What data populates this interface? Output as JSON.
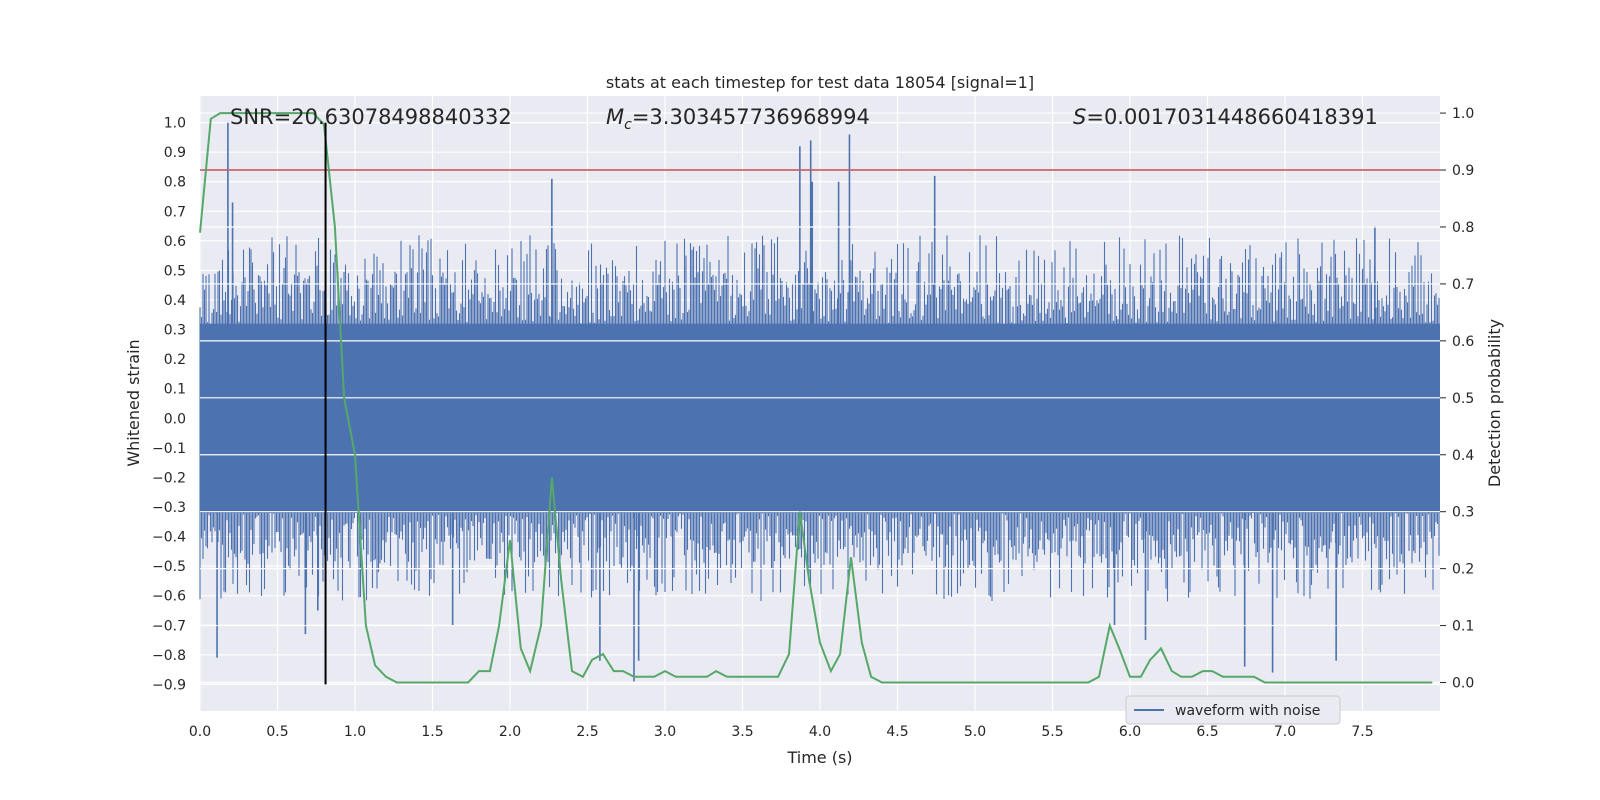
{
  "chart_data": {
    "type": "line",
    "title": "stats at each timestep for test data 18054 [signal=1]",
    "xlabel": "Time (s)",
    "ylabel_left": "Whitened strain",
    "ylabel_right": "Detection probability",
    "xlim": [
      0,
      8
    ],
    "ylim_left": [
      -0.99,
      1.09
    ],
    "ylim_right": [
      -0.05,
      1.03
    ],
    "x_ticks": [
      "0.0",
      "0.5",
      "1.0",
      "1.5",
      "2.0",
      "2.5",
      "3.0",
      "3.5",
      "4.0",
      "4.5",
      "5.0",
      "5.5",
      "6.0",
      "6.5",
      "7.0",
      "7.5"
    ],
    "x_tick_values": [
      0,
      0.5,
      1,
      1.5,
      2,
      2.5,
      3,
      3.5,
      4,
      4.5,
      5,
      5.5,
      6,
      6.5,
      7,
      7.5
    ],
    "y_left_ticks": [
      "1.0",
      "0.9",
      "0.8",
      "0.7",
      "0.6",
      "0.5",
      "0.4",
      "0.3",
      "0.2",
      "0.1",
      "0.0",
      "−0.1",
      "−0.2",
      "−0.3",
      "−0.4",
      "−0.5",
      "−0.6",
      "−0.7",
      "−0.8",
      "−0.9"
    ],
    "y_left_tick_values": [
      1.0,
      0.9,
      0.8,
      0.7,
      0.6,
      0.5,
      0.4,
      0.3,
      0.2,
      0.1,
      0.0,
      -0.1,
      -0.2,
      -0.3,
      -0.4,
      -0.5,
      -0.6,
      -0.7,
      -0.8,
      -0.9
    ],
    "y_right_ticks": [
      "1.0",
      "0.9",
      "0.8",
      "0.7",
      "0.6",
      "0.5",
      "0.4",
      "0.3",
      "0.2",
      "0.1",
      "0.0"
    ],
    "y_right_tick_values": [
      1.0,
      0.9,
      0.8,
      0.7,
      0.6,
      0.5,
      0.4,
      0.3,
      0.2,
      0.1,
      0.0
    ],
    "annotations": {
      "snr": "SNR=20.63078498840332",
      "mc_symbol": "M",
      "mc_sub": "c",
      "mc_value": "=3.303457736968994",
      "s_symbol": "S",
      "s_value": "=0.0017031448660418391"
    },
    "threshold_right": 0.9,
    "merger_time": 0.81,
    "legend": {
      "label": "waveform with noise",
      "location": "lower-right"
    },
    "waveform": {
      "name": "waveform with noise",
      "color": "#4c72b0",
      "core_band": [
        -0.32,
        0.32
      ],
      "noise_spike_max": 0.62,
      "spikes": [
        {
          "t": 0.18,
          "v": 1.0
        },
        {
          "t": 0.21,
          "v": 0.73
        },
        {
          "t": 0.11,
          "v": -0.81
        },
        {
          "t": 0.68,
          "v": -0.73
        },
        {
          "t": 0.76,
          "v": -0.65
        },
        {
          "t": 2.27,
          "v": 0.81
        },
        {
          "t": 2.8,
          "v": -0.89
        },
        {
          "t": 2.58,
          "v": -0.82
        },
        {
          "t": 3.87,
          "v": 0.92
        },
        {
          "t": 3.94,
          "v": 0.94
        },
        {
          "t": 3.95,
          "v": 0.8
        },
        {
          "t": 4.19,
          "v": 0.96
        },
        {
          "t": 4.12,
          "v": 0.8
        },
        {
          "t": 4.74,
          "v": 0.82
        },
        {
          "t": 2.83,
          "v": -0.82
        },
        {
          "t": 6.1,
          "v": -0.75
        },
        {
          "t": 6.74,
          "v": -0.84
        },
        {
          "t": 6.92,
          "v": -0.86
        },
        {
          "t": 7.33,
          "v": -0.82
        },
        {
          "t": 7.58,
          "v": 0.65
        },
        {
          "t": 5.9,
          "v": -0.7
        },
        {
          "t": 1.63,
          "v": -0.7
        }
      ]
    },
    "probability": {
      "name": "detection probability",
      "color": "#55a868",
      "x": [
        0,
        0.07,
        0.13,
        0.2,
        0.27,
        0.33,
        0.4,
        0.47,
        0.53,
        0.6,
        0.67,
        0.73,
        0.8,
        0.87,
        0.93,
        1.0,
        1.07,
        1.13,
        1.2,
        1.27,
        1.33,
        1.4,
        1.47,
        1.53,
        1.6,
        1.67,
        1.73,
        1.8,
        1.87,
        1.93,
        2.0,
        2.07,
        2.13,
        2.2,
        2.27,
        2.33,
        2.4,
        2.47,
        2.53,
        2.6,
        2.67,
        2.73,
        2.8,
        2.87,
        2.93,
        3.0,
        3.07,
        3.13,
        3.2,
        3.27,
        3.33,
        3.4,
        3.47,
        3.53,
        3.6,
        3.67,
        3.73,
        3.8,
        3.87,
        3.93,
        4.0,
        4.07,
        4.13,
        4.2,
        4.27,
        4.33,
        4.4,
        4.5,
        4.6,
        4.7,
        4.8,
        4.9,
        5.0,
        5.1,
        5.2,
        5.3,
        5.4,
        5.5,
        5.6,
        5.67,
        5.73,
        5.8,
        5.87,
        5.93,
        6.0,
        6.07,
        6.13,
        6.2,
        6.27,
        6.33,
        6.4,
        6.47,
        6.53,
        6.6,
        6.67,
        6.73,
        6.8,
        6.87,
        6.93,
        7.0,
        7.1,
        7.2,
        7.4,
        7.6,
        7.8,
        7.95
      ],
      "y": [
        0.79,
        0.99,
        1.0,
        1.0,
        1.0,
        1.0,
        1.0,
        1.0,
        1.0,
        1.0,
        1.0,
        1.0,
        0.98,
        0.8,
        0.5,
        0.4,
        0.1,
        0.03,
        0.01,
        0.0,
        0.0,
        0.0,
        0.0,
        0.0,
        0.0,
        0.0,
        0.0,
        0.02,
        0.02,
        0.1,
        0.25,
        0.06,
        0.02,
        0.1,
        0.36,
        0.18,
        0.02,
        0.01,
        0.04,
        0.05,
        0.02,
        0.02,
        0.01,
        0.01,
        0.01,
        0.02,
        0.01,
        0.01,
        0.01,
        0.01,
        0.02,
        0.01,
        0.01,
        0.01,
        0.01,
        0.01,
        0.01,
        0.05,
        0.3,
        0.18,
        0.07,
        0.02,
        0.05,
        0.22,
        0.07,
        0.01,
        0.0,
        0.0,
        0.0,
        0.0,
        0.0,
        0.0,
        0.0,
        0.0,
        0.0,
        0.0,
        0.0,
        0.0,
        0.0,
        0.0,
        0.0,
        0.01,
        0.1,
        0.06,
        0.01,
        0.01,
        0.04,
        0.06,
        0.02,
        0.01,
        0.01,
        0.02,
        0.02,
        0.01,
        0.01,
        0.01,
        0.01,
        0.0,
        0.0,
        0.0,
        0.0,
        0.0,
        0.0,
        0.0,
        0.0,
        0.0
      ]
    }
  }
}
